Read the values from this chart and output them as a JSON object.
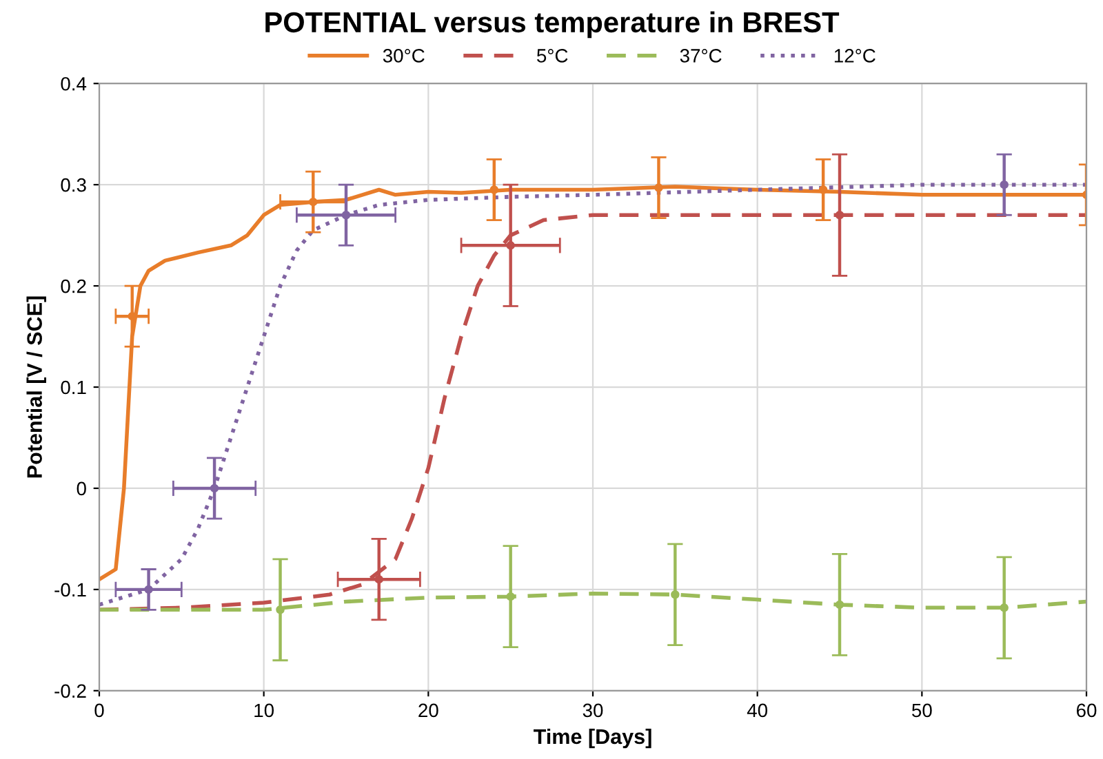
{
  "chart_data": {
    "type": "line",
    "title": "POTENTIAL versus temperature in BREST",
    "xlabel": "Time [Days]",
    "ylabel": "Potential [V / SCE]",
    "xlim": [
      0,
      60
    ],
    "xticks": [
      0,
      10,
      20,
      30,
      40,
      50,
      60
    ],
    "ylim": [
      -0.2,
      0.4
    ],
    "yticks": [
      -0.2,
      -0.1,
      0,
      0.1,
      0.2,
      0.3,
      0.4
    ],
    "grid": true,
    "legend": "top",
    "series": [
      {
        "name": "30°C",
        "color": "#e87d2a",
        "line_style": "solid",
        "x": [
          0,
          1,
          1.5,
          2,
          2.5,
          3,
          4,
          6,
          8,
          9,
          10,
          11,
          13,
          15,
          16,
          17,
          18,
          20,
          22,
          25,
          30,
          35,
          40,
          45,
          50,
          55,
          60
        ],
        "values": [
          -0.09,
          -0.08,
          0.0,
          0.15,
          0.2,
          0.215,
          0.225,
          0.233,
          0.24,
          0.25,
          0.27,
          0.28,
          0.283,
          0.285,
          0.29,
          0.295,
          0.29,
          0.293,
          0.292,
          0.295,
          0.295,
          0.298,
          0.295,
          0.293,
          0.29,
          0.29,
          0.29
        ]
      },
      {
        "name": "5°C",
        "color": "#c0504d",
        "line_style": "dashed",
        "x": [
          0,
          5,
          10,
          14,
          16,
          18,
          19,
          20,
          21,
          22,
          23,
          24,
          25,
          27,
          30,
          40,
          60
        ],
        "values": [
          -0.12,
          -0.118,
          -0.113,
          -0.105,
          -0.095,
          -0.07,
          -0.03,
          0.02,
          0.09,
          0.15,
          0.2,
          0.23,
          0.25,
          0.265,
          0.27,
          0.27,
          0.27
        ]
      },
      {
        "name": "37°C",
        "color": "#9bbb59",
        "line_style": "dashed",
        "x": [
          0,
          10,
          15,
          20,
          25,
          30,
          35,
          40,
          45,
          50,
          55,
          60
        ],
        "values": [
          -0.12,
          -0.12,
          -0.112,
          -0.108,
          -0.107,
          -0.104,
          -0.105,
          -0.11,
          -0.115,
          -0.118,
          -0.118,
          -0.112
        ]
      },
      {
        "name": "12°C",
        "color": "#8064a2",
        "line_style": "dotted",
        "x": [
          0,
          3,
          5,
          6,
          7,
          8,
          9,
          10,
          11,
          12,
          13,
          15,
          17,
          20,
          25,
          30,
          40,
          50,
          60
        ],
        "values": [
          -0.115,
          -0.1,
          -0.07,
          -0.04,
          0.0,
          0.05,
          0.1,
          0.15,
          0.2,
          0.235,
          0.255,
          0.27,
          0.28,
          0.285,
          0.288,
          0.29,
          0.295,
          0.3,
          0.3
        ]
      },
      {
        "type": "scatter",
        "marker": "circle",
        "color": "#e87d2a",
        "x": [
          2,
          13,
          24,
          34,
          44,
          60
        ],
        "values": [
          0.17,
          0.283,
          0.295,
          0.297,
          0.295,
          0.29
        ],
        "errors": [
          0.03,
          0.03,
          0.03,
          0.03,
          0.03,
          0.03
        ],
        "xerrors": [
          1,
          2,
          null,
          null,
          null,
          null
        ]
      },
      {
        "type": "scatter",
        "marker": "circle",
        "color": "#c0504d",
        "x": [
          17,
          25,
          45
        ],
        "values": [
          -0.09,
          0.24,
          0.27
        ],
        "errors": [
          0.04,
          0.06,
          0.06
        ],
        "xerrors": [
          2.5,
          3,
          null
        ]
      },
      {
        "type": "scatter",
        "marker": "circle",
        "color": "#9bbb59",
        "x": [
          11,
          25,
          35,
          45,
          55
        ],
        "values": [
          -0.12,
          -0.107,
          -0.105,
          -0.115,
          -0.118
        ],
        "errors": [
          0.05,
          0.05,
          0.05,
          0.05,
          0.05
        ]
      },
      {
        "type": "scatter",
        "marker": "circle",
        "color": "#8064a2",
        "x": [
          3,
          7,
          15,
          55
        ],
        "values": [
          -0.1,
          0.0,
          0.27,
          0.3
        ],
        "errors": [
          0.02,
          0.03,
          0.03,
          0.03
        ],
        "xerrors": [
          2,
          2.5,
          3,
          null
        ]
      }
    ]
  }
}
